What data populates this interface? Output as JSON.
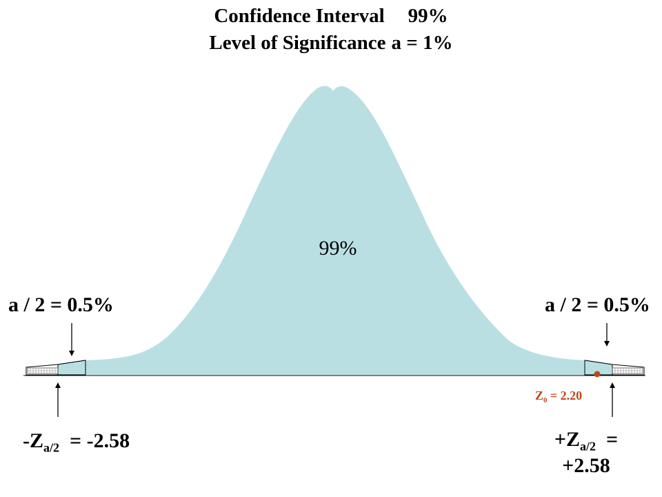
{
  "title": {
    "line1_label": "Confidence Interval",
    "line1_value": "99%",
    "line2_label": "Level of Significance",
    "line2_value": "a = 1%"
  },
  "center_label": "99%",
  "tails": {
    "left_label": "a / 2 = 0.5%",
    "right_label": "a / 2 = 0.5%"
  },
  "critical": {
    "left_prefix": "-Z",
    "left_sub": "a/2",
    "left_value": "= -2.58",
    "right_prefix": "+Z",
    "right_sub": "a/2",
    "right_eq": "=",
    "right_value": "+2.58"
  },
  "test_statistic": {
    "prefix": "Z",
    "sub": "0",
    "value": "= 2.20"
  },
  "colors": {
    "curve_fill": "#b9dfe2",
    "marker": "#c0461a",
    "text": "#000000"
  }
}
